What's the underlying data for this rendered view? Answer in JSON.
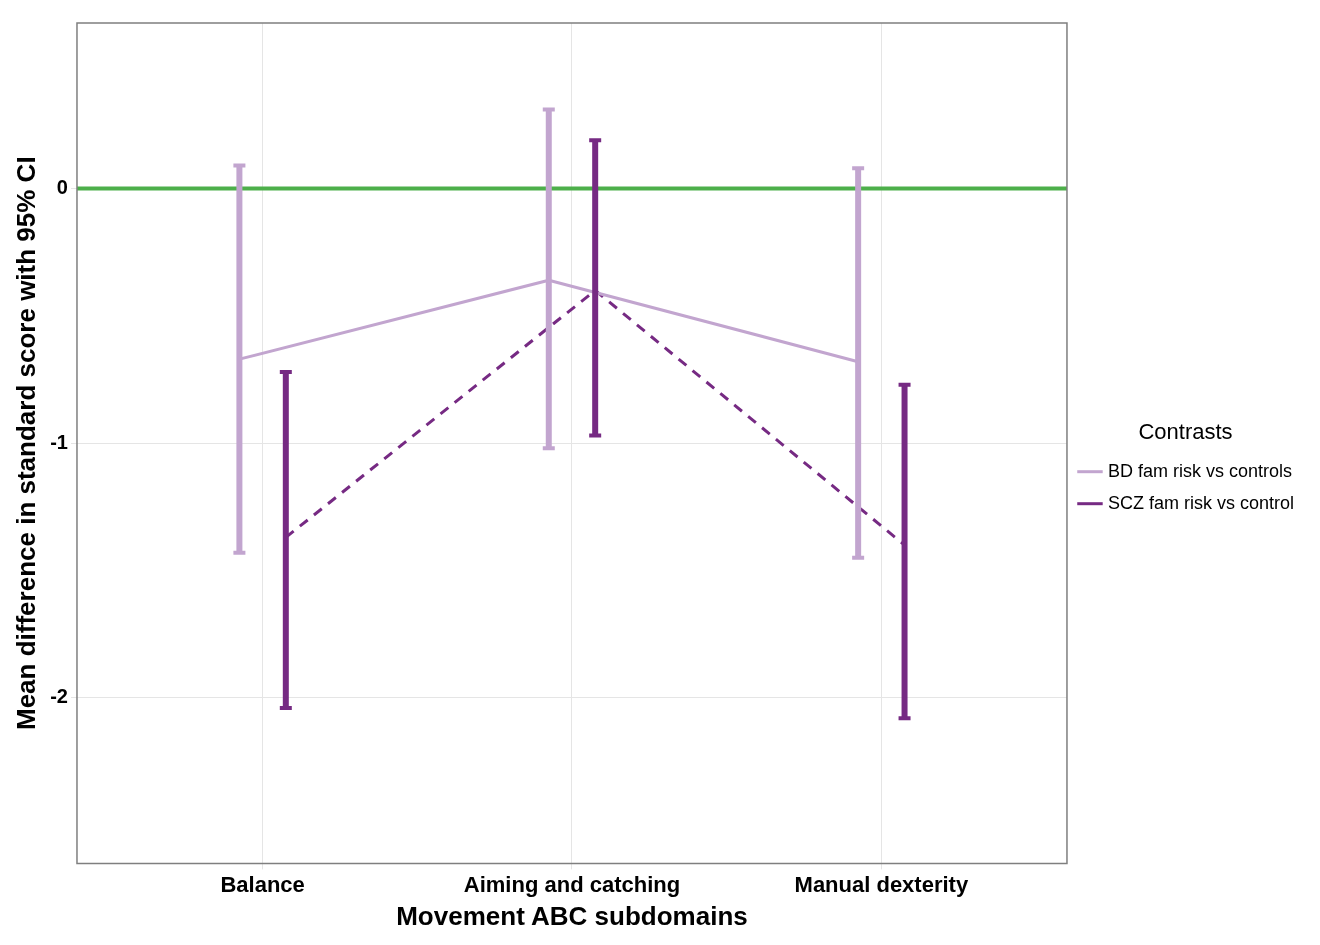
{
  "chart_data": {
    "type": "line",
    "xlabel": "Movement ABC subdomains",
    "ylabel": "Mean difference in standard score with 95% CI",
    "legend_title": "Contrasts",
    "categories": [
      "Balance",
      "Aiming and catching",
      "Manual dexterity"
    ],
    "series": [
      {
        "name": "BD fam risk vs controls",
        "color": "#c2a5cf",
        "line_style": "solid",
        "values": [
          -0.67,
          -0.36,
          -0.68
        ],
        "errors": [
          [
            -1.43,
            0.09
          ],
          [
            -1.02,
            0.31
          ],
          [
            -1.45,
            0.08
          ]
        ]
      },
      {
        "name": "SCZ fam risk vs control",
        "color": "#762a83",
        "line_style": "dashed",
        "values": [
          -1.37,
          -0.4,
          -1.4
        ],
        "errors": [
          [
            -2.04,
            -0.72
          ],
          [
            -0.97,
            0.19
          ],
          [
            -2.08,
            -0.77
          ]
        ]
      }
    ],
    "ylim": [
      -2.65,
      0.65
    ],
    "yticks": [
      0,
      -1,
      -2
    ],
    "grid": true,
    "legend": "right",
    "marker": "none",
    "ref_lines": [
      {
        "axis": "y",
        "value": 0,
        "color": "#4daf4a"
      }
    ]
  }
}
